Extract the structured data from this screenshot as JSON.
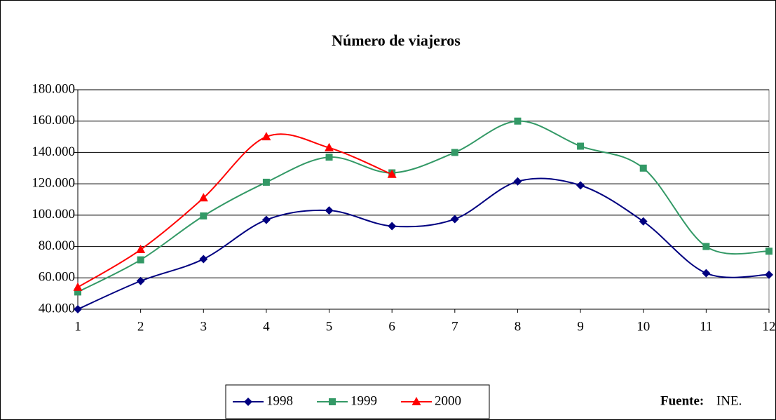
{
  "chart_data": {
    "type": "line",
    "title": "Número de viajeros",
    "x": [
      1,
      2,
      3,
      4,
      5,
      6,
      7,
      8,
      9,
      10,
      11,
      12
    ],
    "xlim": [
      1,
      12
    ],
    "xticks": [
      1,
      2,
      3,
      4,
      5,
      6,
      7,
      8,
      9,
      10,
      11,
      12
    ],
    "ylim": [
      40000,
      180000
    ],
    "yticks": [
      {
        "value": 40000,
        "label": "40.000"
      },
      {
        "value": 60000,
        "label": "60.000"
      },
      {
        "value": 80000,
        "label": "80.000"
      },
      {
        "value": 100000,
        "label": "100.000"
      },
      {
        "value": 120000,
        "label": "120.000"
      },
      {
        "value": 140000,
        "label": "140.000"
      },
      {
        "value": 160000,
        "label": "160.000"
      },
      {
        "value": 180000,
        "label": "180.000"
      }
    ],
    "grid": true,
    "series": [
      {
        "name": "1998",
        "color": "#000080",
        "marker": "diamond",
        "values": [
          40000,
          58000,
          72000,
          97000,
          103000,
          93000,
          97500,
          121500,
          119000,
          96000,
          63000,
          62000
        ]
      },
      {
        "name": "1999",
        "color": "#339966",
        "marker": "square",
        "values": [
          51000,
          71500,
          99500,
          121000,
          137000,
          127000,
          140000,
          160000,
          144000,
          130000,
          80000,
          77000
        ]
      },
      {
        "name": "2000",
        "color": "#ff0000",
        "marker": "triangle",
        "values": [
          54000,
          78000,
          111000,
          150000,
          143000,
          126000,
          null,
          null,
          null,
          null,
          null,
          null
        ]
      }
    ],
    "source_label": "Fuente:",
    "source": "INE."
  }
}
